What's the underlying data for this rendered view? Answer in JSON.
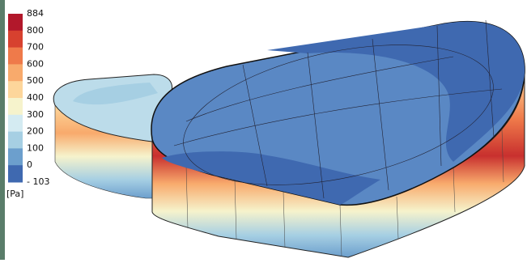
{
  "legend": {
    "labels": [
      "884",
      "800",
      "700",
      "600",
      "500",
      "400",
      "300",
      "200",
      "100",
      "0",
      "- 103"
    ],
    "colors": [
      "#b2182b",
      "#d7412f",
      "#ef7a4a",
      "#f8aa6c",
      "#fdd69b",
      "#f6f3cc",
      "#d4ebf2",
      "#a6cfe3",
      "#6c9fcd",
      "#3f69b0"
    ],
    "unit": "[Pa]"
  }
}
